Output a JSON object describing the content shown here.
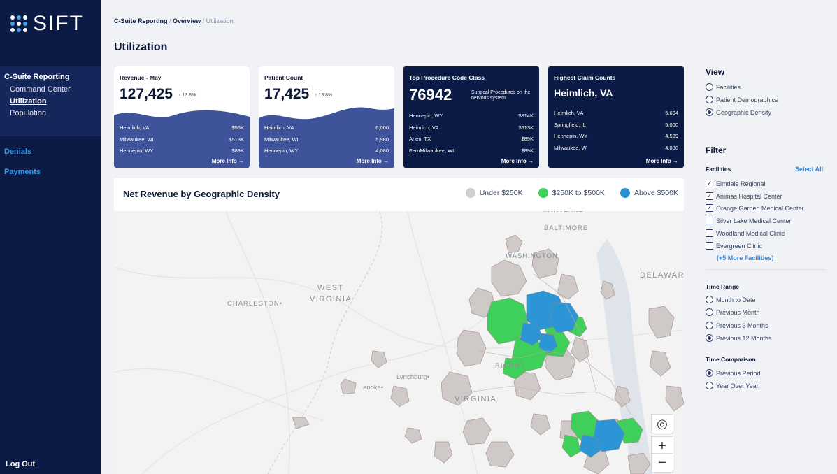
{
  "brand": {
    "name": "SIFT"
  },
  "sidebar": {
    "group_title": "C-Suite Reporting",
    "sub_items": [
      {
        "label": "Command Center",
        "active": false
      },
      {
        "label": "Utilization",
        "active": true
      },
      {
        "label": "Population",
        "active": false
      }
    ],
    "links": [
      "Denials",
      "Payments"
    ],
    "logout": "Log Out"
  },
  "breadcrumb": {
    "items": [
      "C-Suite Reporting",
      "Overview"
    ],
    "current": "Utilization",
    "separator": "/"
  },
  "page_title": "Utilization",
  "cards": [
    {
      "label": "Revenue - May",
      "value": "127,425",
      "delta": "↓ 13.8%",
      "rows": [
        [
          "Heimlich, VA",
          "$56K"
        ],
        [
          "Milwaukee, WI",
          "$513K"
        ],
        [
          "Hennepin, WY",
          "$89K"
        ]
      ],
      "more": "More Info →"
    },
    {
      "label": "Patient Count",
      "value": "17,425",
      "delta": "↑ 13.8%",
      "rows": [
        [
          "Heimlich, VA",
          "6,000"
        ],
        [
          "Milwaukee, WI",
          "5,980"
        ],
        [
          "Hennepin, WY",
          "4,080"
        ]
      ],
      "more": "More Info →"
    },
    {
      "label": "Top Procedure Code Class",
      "value": "76942",
      "subtitle": "Surgical Procedures on the nervous system",
      "rows": [
        [
          "Hennepin, WY",
          "$814K"
        ],
        [
          "Heimlich, VA",
          "$513K"
        ],
        [
          "Arlen, TX",
          "$89K"
        ],
        [
          "FernMilwaukee, WI",
          "$89K"
        ]
      ],
      "more": "More Info →"
    },
    {
      "label": "Highest Claim Counts",
      "value": "Heimlich, VA",
      "rows": [
        [
          "Heimlich, VA",
          "5,604"
        ],
        [
          "Springfield, IL",
          "5,000"
        ],
        [
          "Hennepin, WY",
          "4,509"
        ],
        [
          "Milwaukee, WI",
          "4,030"
        ]
      ],
      "more": "More Info →"
    }
  ],
  "map": {
    "title": "Net Revenue by Geographic Density",
    "legend": [
      {
        "label": "Under $250K",
        "color": "#cfcfcf"
      },
      {
        "label": "$250K to $500K",
        "color": "#3ccf5a"
      },
      {
        "label": "Above $500K",
        "color": "#2a8fd3"
      }
    ],
    "labels": {
      "maryland": "MARYLAND",
      "baltimore": "BALTIMORE",
      "washington": "WASHINGTON",
      "delaware": "DELAWAR",
      "west_virginia_1": "WEST",
      "west_virginia_2": "VIRGINIA",
      "charleston": "CHARLESTON•",
      "richmond": "RICHM",
      "lynchburg": "Lynchburg•",
      "roanoke": "anoke•",
      "virginia": "VIRGINIA"
    },
    "controls": {
      "locate": "◎",
      "zoom_in": "+",
      "zoom_out": "−"
    }
  },
  "view": {
    "heading": "View",
    "options": [
      {
        "label": "Facilities",
        "selected": false
      },
      {
        "label": "Patient Demographics",
        "selected": false
      },
      {
        "label": "Geographic Density",
        "selected": true
      }
    ]
  },
  "filter": {
    "heading": "Filter",
    "facilities_label": "Facilities",
    "select_all": "Select All",
    "facilities": [
      {
        "label": "Elmdale Regional",
        "checked": true
      },
      {
        "label": "Animas Hospital Center",
        "checked": true
      },
      {
        "label": "Orange Garden Medical Center",
        "checked": true
      },
      {
        "label": "Silver Lake Medical Center",
        "checked": false
      },
      {
        "label": "Woodland Medical Clinic",
        "checked": false
      },
      {
        "label": "Evergreen Clinic",
        "checked": false
      }
    ],
    "more_facilities": "[+5 More Facilities]"
  },
  "time_range": {
    "label": "Time Range",
    "options": [
      {
        "label": "Month to Date",
        "selected": false
      },
      {
        "label": "Previous Month",
        "selected": false
      },
      {
        "label": "Previous 3 Months",
        "selected": false
      },
      {
        "label": "Previous 12 Months",
        "selected": true
      }
    ]
  },
  "time_comparison": {
    "label": "Time Comparison",
    "options": [
      {
        "label": "Previous Period",
        "selected": true
      },
      {
        "label": "Year Over Year",
        "selected": false
      }
    ]
  }
}
